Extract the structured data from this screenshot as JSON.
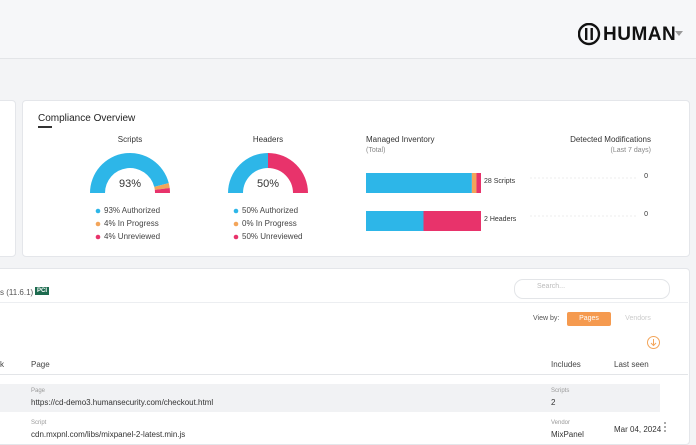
{
  "header": {
    "logo": "HUMAN"
  },
  "compliance": {
    "title": "Compliance Overview",
    "gauges": [
      {
        "title": "Scripts",
        "center": "93%",
        "segments": [
          {
            "label": "93% Authorized",
            "value": 93,
            "color": "#2db6e8"
          },
          {
            "label": "4% In Progress",
            "value": 4,
            "color": "#f3a55a"
          },
          {
            "label": "4% Unreviewed",
            "value": 4,
            "color": "#e8336b"
          }
        ]
      },
      {
        "title": "Headers",
        "center": "50%",
        "segments": [
          {
            "label": "50% Authorized",
            "value": 50,
            "color": "#2db6e8"
          },
          {
            "label": "0% In Progress",
            "value": 0,
            "color": "#f3a55a"
          },
          {
            "label": "50% Unreviewed",
            "value": 50,
            "color": "#e8336b"
          }
        ]
      }
    ],
    "inventory": {
      "title": "Managed Inventory",
      "subtitle": "(Total)",
      "labels": [
        "28 Scripts",
        "2 Headers"
      ]
    },
    "modifications": {
      "title": "Detected Modifications",
      "subtitle": "(Last 7 days)",
      "values": [
        "0",
        "0"
      ]
    }
  },
  "inventory_panel": {
    "title": "s (11.6.1)",
    "badge": "PCI",
    "search": "Search...",
    "view_by": "View by:",
    "tabs": [
      "Pages",
      "Vendors"
    ],
    "columns": [
      "k",
      "Page",
      "Includes",
      "Last seen"
    ],
    "rows": [
      {
        "type": "Page",
        "name": "https://cd-demo3.humansecurity.com/checkout.html",
        "includes_label": "Scripts",
        "includes": "2",
        "last_seen": ""
      },
      {
        "type": "Script",
        "name": "cdn.mxpnl.com/libs/mixpanel-2-latest.min.js",
        "includes_label": "Vendor",
        "includes": "MixPanel",
        "last_seen": "Mar 04, 2024"
      }
    ]
  }
}
